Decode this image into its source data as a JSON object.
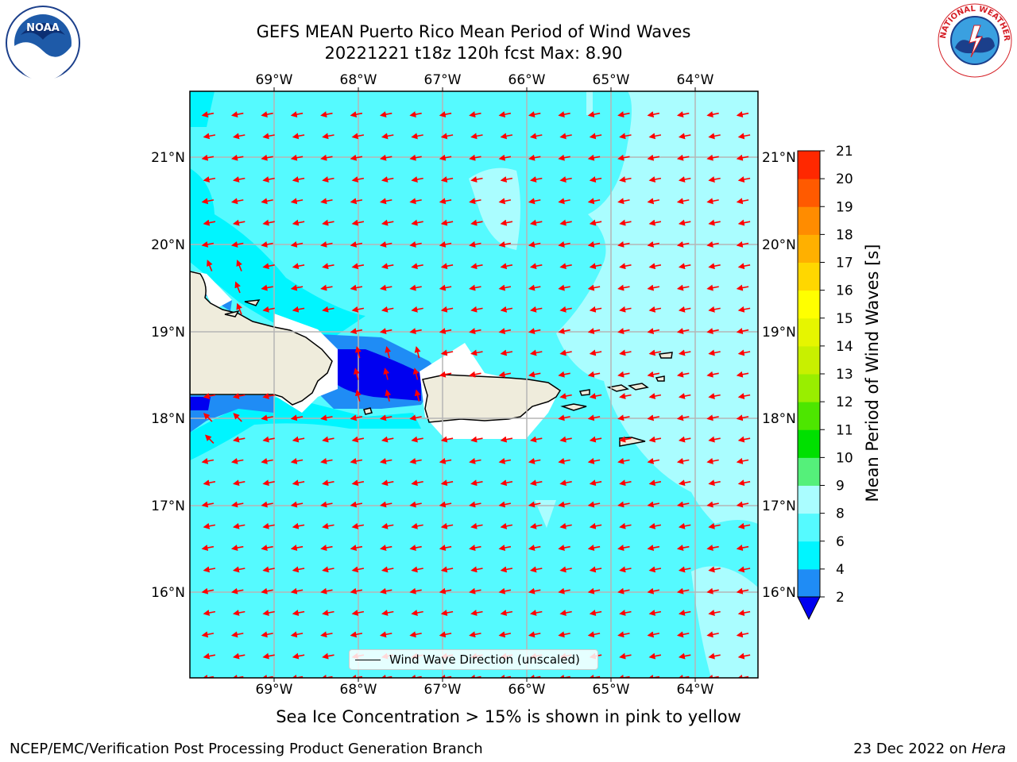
{
  "title": {
    "line1": "GEFS MEAN Puerto Rico Mean Period of Wind Waves",
    "line2": "20221221 t18z 120h fcst   Max: 8.90"
  },
  "map": {
    "lon_labels": [
      "69°W",
      "68°W",
      "67°W",
      "66°W",
      "65°W",
      "64°W"
    ],
    "lat_labels": [
      "21°N",
      "20°N",
      "19°N",
      "18°N",
      "17°N",
      "16°N"
    ],
    "legend_label": "Wind Wave Direction (unscaled)",
    "arrow_color": "#ff0000"
  },
  "colorbar": {
    "title": "Mean Period of Wind Waves [s]",
    "ticks": [
      "2",
      "4",
      "6",
      "8",
      "9",
      "10",
      "11",
      "12",
      "13",
      "14",
      "15",
      "16",
      "17",
      "18",
      "19",
      "20",
      "21"
    ],
    "colors": [
      "#0000f0",
      "#1f8cf5",
      "#00f5ff",
      "#55faff",
      "#aafdff",
      "#55f07a",
      "#00e000",
      "#4de600",
      "#99ee00",
      "#c8f000",
      "#e6f500",
      "#ffff00",
      "#ffd700",
      "#ffb000",
      "#ff8c00",
      "#ff5a00",
      "#ff2800",
      "#ff0000"
    ],
    "extend": "min"
  },
  "note": "Sea Ice Concentration > 15% is shown in pink to yellow",
  "footer": {
    "left": "NCEP/EMC/Verification Post Processing Product Generation Branch",
    "right_date": "23 Dec 2022 on ",
    "right_host": "Hera"
  },
  "logos": {
    "noaa_text": "NOAA",
    "nws_text": "NATIONAL WEATHER SERVICE"
  }
}
